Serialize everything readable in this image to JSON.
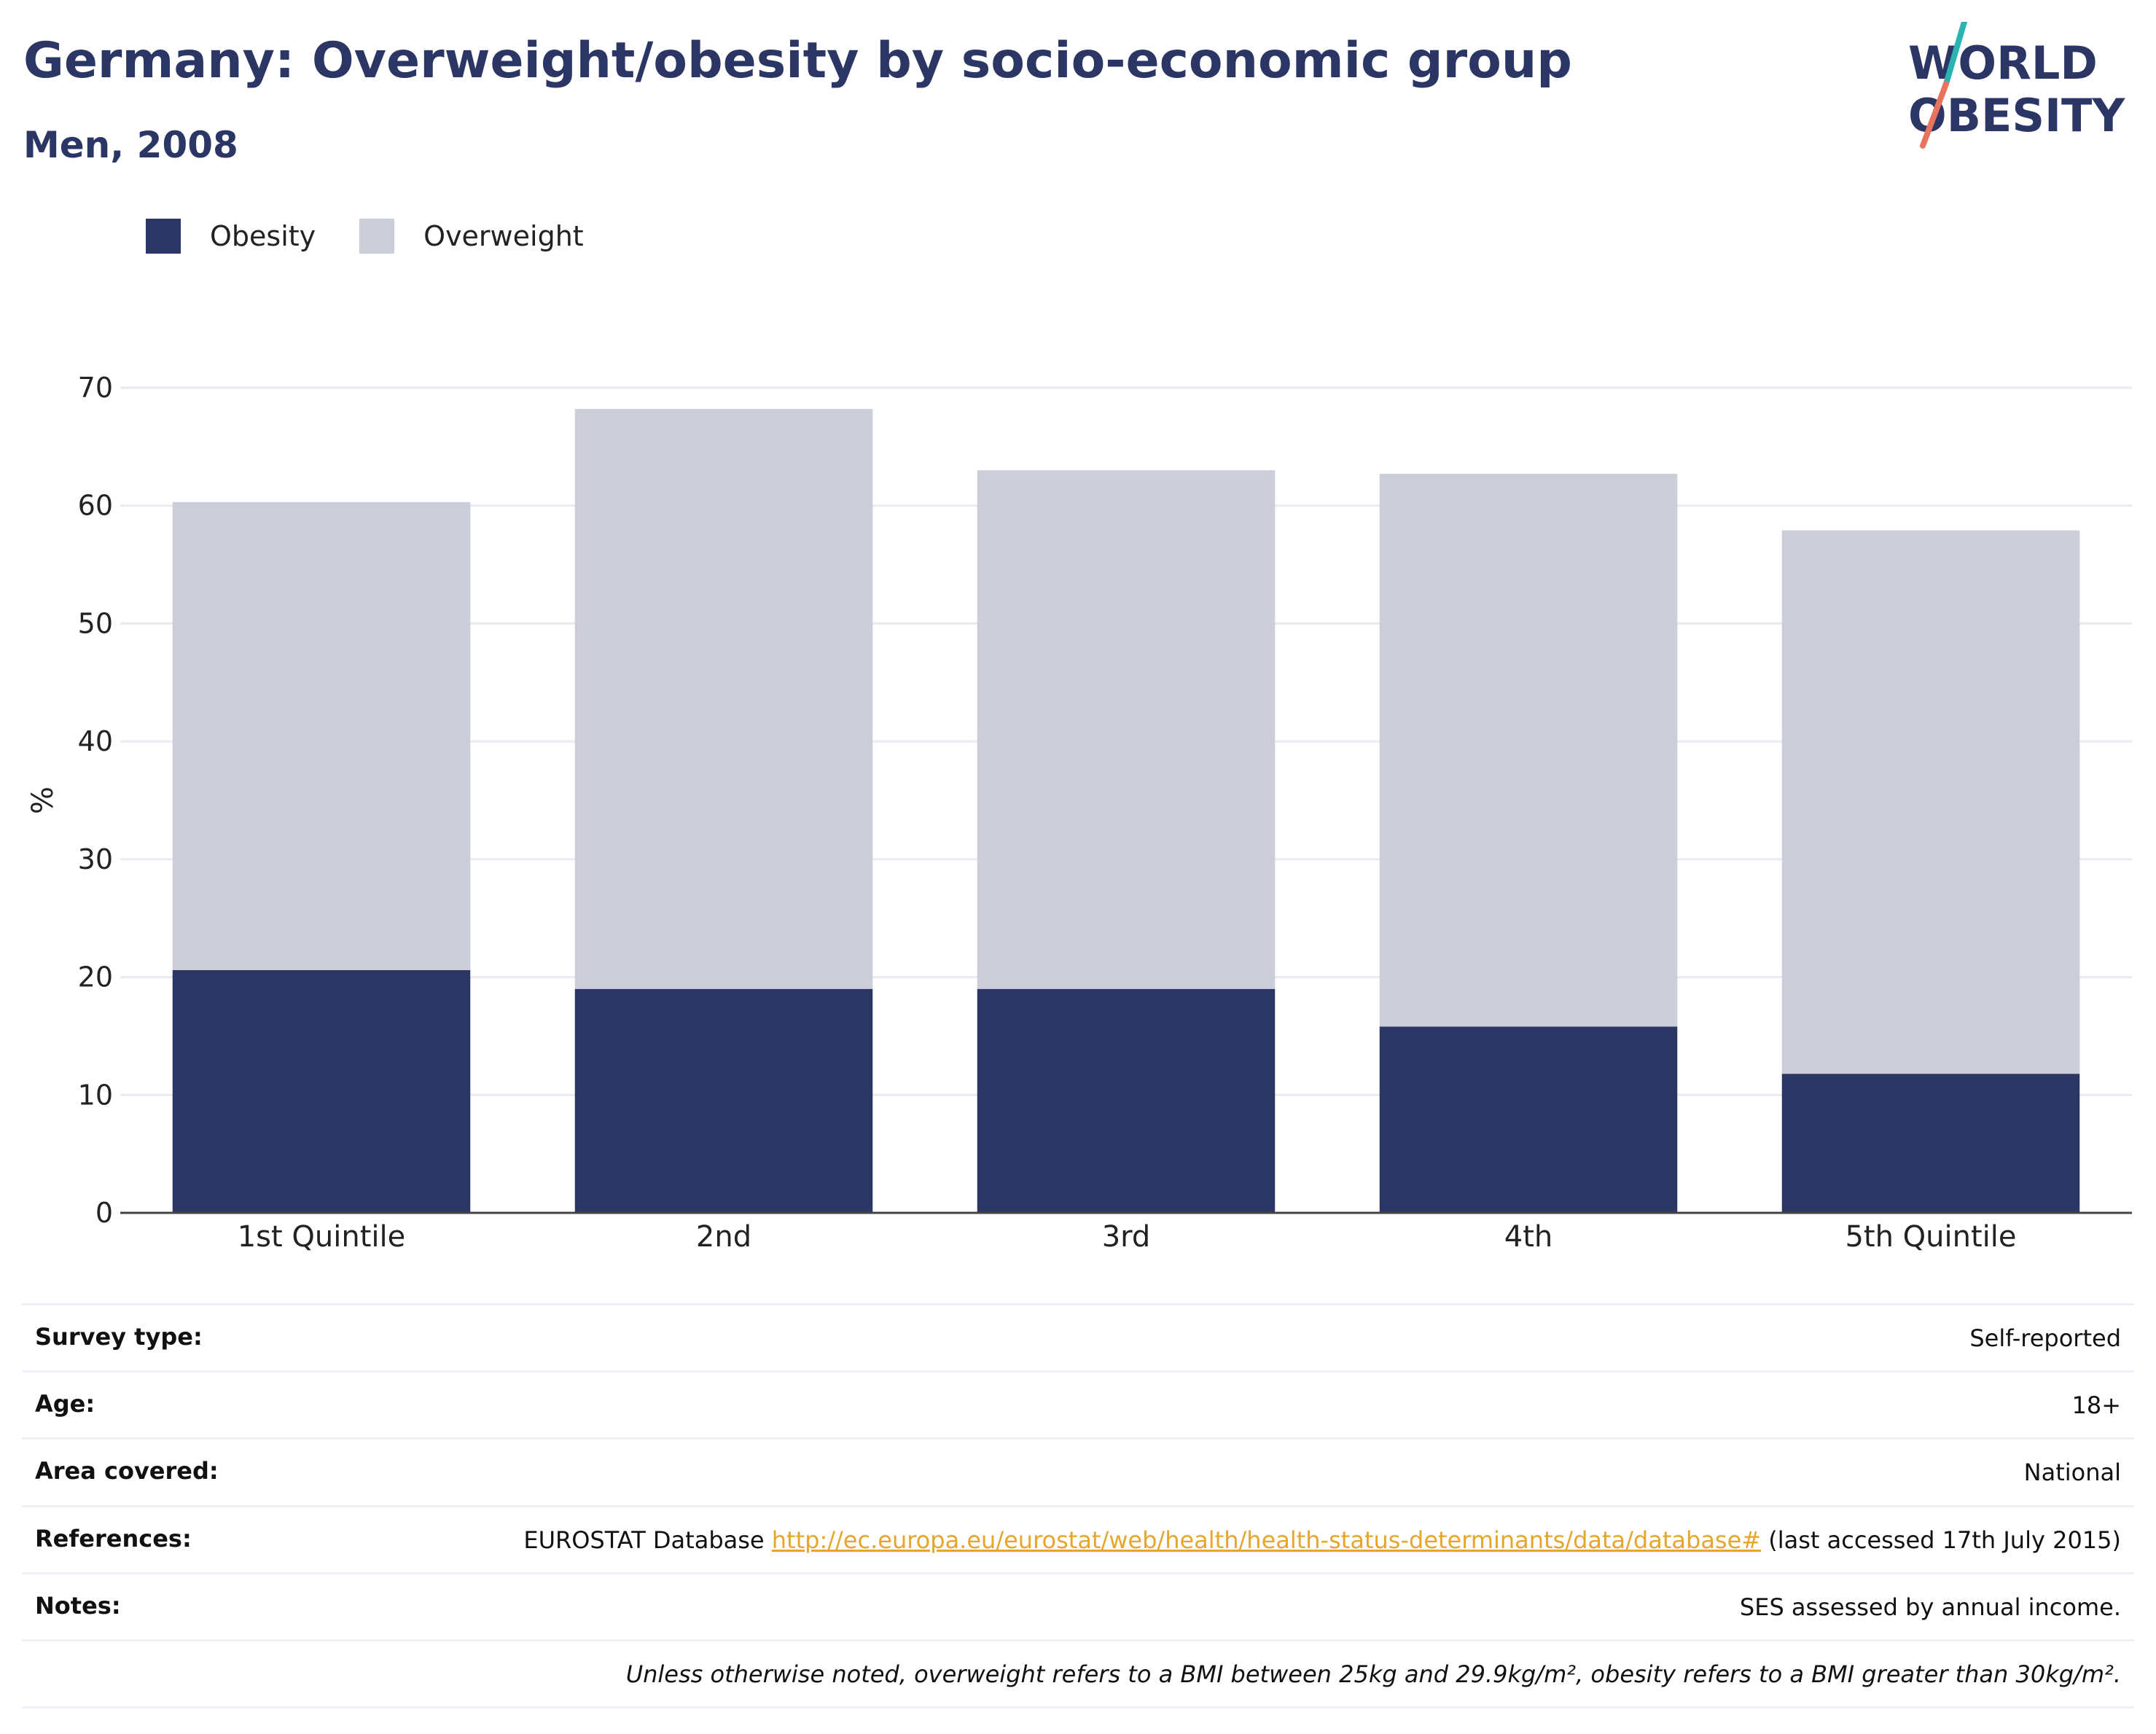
{
  "header": {
    "title": "Germany: Overweight/obesity by socio-economic group",
    "subtitle": "Men, 2008"
  },
  "logo": {
    "line1": "WORLD",
    "line2": "OBESITY"
  },
  "colors": {
    "obesity": "#2b3664",
    "overweight": "#cbcdd9",
    "accent_teal": "#2ab3b0",
    "accent_coral": "#e8735e",
    "link": "#e7a62a"
  },
  "chart_data": {
    "type": "bar",
    "stacked": true,
    "categories": [
      "1st Quintile",
      "2nd",
      "3rd",
      "4th",
      "5th Quintile"
    ],
    "series": [
      {
        "name": "Obesity",
        "color": "#2b3664",
        "values": [
          20.6,
          19.0,
          19.0,
          15.8,
          11.8
        ]
      },
      {
        "name": "Overweight",
        "color": "#cbcdd9",
        "values": [
          39.7,
          49.2,
          44.0,
          46.9,
          46.1
        ]
      }
    ],
    "ylabel": "%",
    "ylim": [
      0,
      70
    ],
    "yticks": [
      0,
      10,
      20,
      30,
      40,
      50,
      60,
      70
    ],
    "grid": true,
    "legend_position": "top-left"
  },
  "info": {
    "survey_type": {
      "label": "Survey type:",
      "value": "Self-reported"
    },
    "age": {
      "label": "Age:",
      "value": "18+"
    },
    "area": {
      "label": "Area covered:",
      "value": "National"
    },
    "references": {
      "label": "References:",
      "prefix": "EUROSTAT Database ",
      "link": "http://ec.europa.eu/eurostat/web/health/health-status-determinants/data/database#",
      "suffix": " (last accessed 17th July 2015)"
    },
    "notes": {
      "label": "Notes:",
      "value": "SES assessed by annual income."
    },
    "definition": "Unless otherwise noted, overweight refers to a BMI between 25kg and 29.9kg/m², obesity refers to a BMI greater than 30kg/m²."
  }
}
